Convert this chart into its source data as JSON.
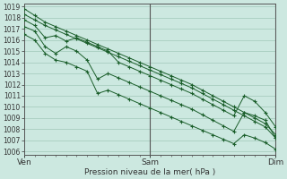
{
  "bg_color": "#cce8e0",
  "grid_color": "#a0c8b8",
  "line_color": "#1a5e2a",
  "marker_color": "#1a5e2a",
  "xlabel": "Pression niveau de la mer( hPa )",
  "xtick_labels": [
    "Ven",
    "Sam",
    "Dim"
  ],
  "xtick_positions": [
    0.0,
    0.5,
    1.0
  ],
  "ylim": [
    1006,
    1019
  ],
  "yticks": [
    1006,
    1007,
    1008,
    1009,
    1010,
    1011,
    1012,
    1013,
    1014,
    1015,
    1016,
    1017,
    1018,
    1019
  ],
  "xlim": [
    0.0,
    1.0
  ],
  "num_points": 25,
  "series": [
    [
      1018.8,
      1018.2,
      1017.6,
      1017.2,
      1016.8,
      1016.4,
      1016.0,
      1015.6,
      1015.2,
      1014.8,
      1014.4,
      1014.0,
      1013.6,
      1013.2,
      1012.8,
      1012.4,
      1012.0,
      1011.5,
      1011.0,
      1010.5,
      1010.0,
      1009.5,
      1009.0,
      1008.5,
      1007.5
    ],
    [
      1018.3,
      1017.8,
      1017.3,
      1016.9,
      1016.5,
      1016.1,
      1015.7,
      1015.3,
      1014.9,
      1014.5,
      1014.1,
      1013.7,
      1013.3,
      1012.9,
      1012.5,
      1012.1,
      1011.7,
      1011.2,
      1010.7,
      1010.2,
      1009.7,
      1009.2,
      1008.7,
      1008.2,
      1007.2
    ],
    [
      1017.8,
      1017.3,
      1016.2,
      1016.4,
      1015.9,
      1016.2,
      1015.8,
      1015.4,
      1015.0,
      1014.0,
      1013.6,
      1013.2,
      1012.8,
      1012.4,
      1012.0,
      1011.6,
      1011.2,
      1010.7,
      1010.2,
      1009.7,
      1009.2,
      1011.0,
      1010.5,
      1009.5,
      1008.2
    ],
    [
      1017.2,
      1016.8,
      1015.4,
      1014.8,
      1015.4,
      1015.0,
      1014.2,
      1012.5,
      1013.0,
      1012.6,
      1012.2,
      1011.8,
      1011.4,
      1011.0,
      1010.6,
      1010.2,
      1009.8,
      1009.3,
      1008.8,
      1008.3,
      1007.8,
      1009.5,
      1009.2,
      1008.8,
      1007.2
    ],
    [
      1016.5,
      1016.0,
      1014.8,
      1014.2,
      1014.0,
      1013.6,
      1013.2,
      1011.2,
      1011.5,
      1011.1,
      1010.7,
      1010.3,
      1009.9,
      1009.5,
      1009.1,
      1008.7,
      1008.3,
      1007.9,
      1007.5,
      1007.1,
      1006.7,
      1007.5,
      1007.2,
      1006.8,
      1006.2
    ]
  ]
}
